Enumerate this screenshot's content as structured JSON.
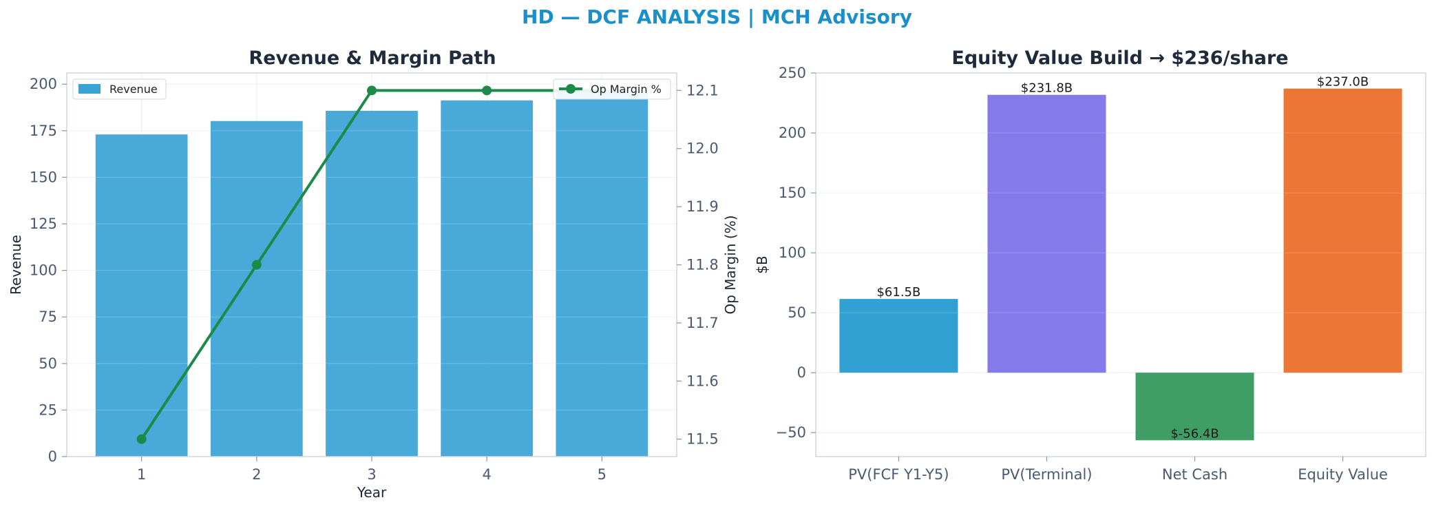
{
  "suptitle": "HD — DCF ANALYSIS | MCH Advisory",
  "chart_data": [
    {
      "type": "bar",
      "title": "Revenue & Margin Path",
      "xlabel": "Year",
      "ylabel": "Revenue",
      "y2label": "Op Margin (%)",
      "categories": [
        "1",
        "2",
        "3",
        "4",
        "5"
      ],
      "series": [
        {
          "name": "Revenue",
          "type": "bar",
          "axis": "left",
          "values": [
            173.0,
            180.2,
            185.7,
            191.3,
            197.1
          ],
          "color": "#3aa3d6"
        },
        {
          "name": "Op Margin %",
          "type": "line",
          "axis": "right",
          "values": [
            11.5,
            11.8,
            12.1,
            12.1,
            12.1
          ],
          "color": "#1e8a4a"
        }
      ],
      "ylim": [
        0,
        206
      ],
      "yticks": [
        0,
        25,
        50,
        75,
        100,
        125,
        150,
        175,
        200
      ],
      "y2lim": [
        11.47,
        12.13
      ],
      "y2ticks": [
        11.5,
        11.6,
        11.7,
        11.8,
        11.9,
        12.0,
        12.1
      ],
      "legend": [
        "top-left",
        "top-right"
      ],
      "grid": true
    },
    {
      "type": "bar",
      "title": "Equity Value Build → $236/share",
      "xlabel": "",
      "ylabel": "$B",
      "categories": [
        "PV(FCF Y1-Y5)",
        "PV(Terminal)",
        "Net Cash",
        "Equity Value"
      ],
      "values": [
        61.5,
        231.8,
        -56.4,
        237.0
      ],
      "data_labels": [
        "$61.5B",
        "$231.8B",
        "$-56.4B",
        "$237.0B"
      ],
      "colors": [
        "#1f98cf",
        "#7b6fe8",
        "#2f9657",
        "#ea6a24"
      ],
      "ylim": [
        -70,
        250
      ],
      "yticks": [
        -50,
        0,
        50,
        100,
        150,
        200,
        250
      ],
      "grid": true
    }
  ]
}
